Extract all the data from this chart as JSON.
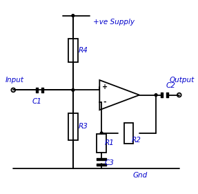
{
  "color_circuit": "black",
  "color_text": "#0000cc",
  "color_bg": "white",
  "labels": {
    "input": "Input",
    "output": "Output",
    "supply": "+ve Supply",
    "gnd": "Gnd",
    "R1": "R1",
    "R2": "R2",
    "R3": "R3",
    "R4": "R4",
    "C1": "C1",
    "C2": "C2",
    "C3": "C3"
  },
  "figsize": [
    2.87,
    2.81
  ],
  "dpi": 100
}
